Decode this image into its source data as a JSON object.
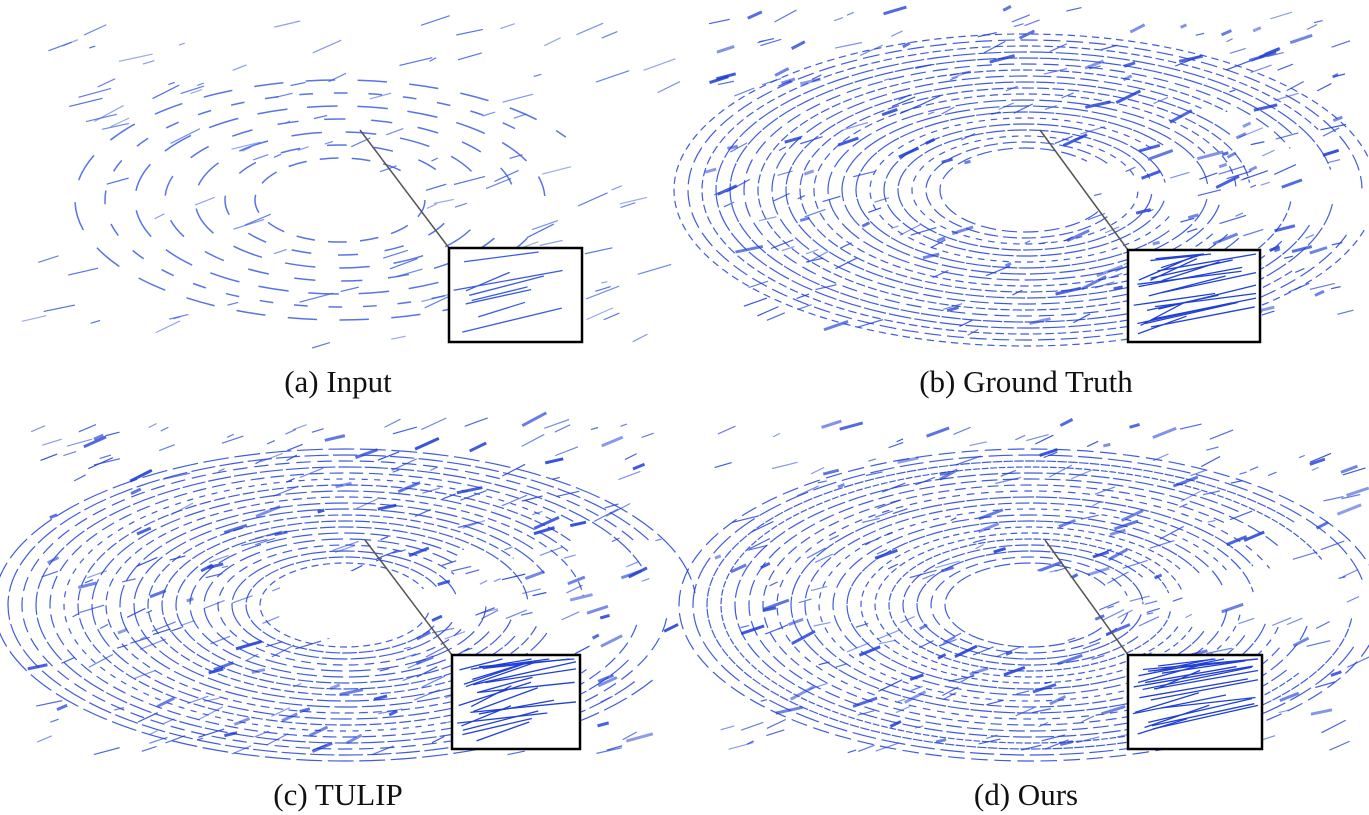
{
  "panels": [
    {
      "caption": "(a) Input"
    },
    {
      "caption": "(b) Ground Truth"
    },
    {
      "caption": "(c) TULIP"
    },
    {
      "caption": "(d) Ours"
    }
  ]
}
